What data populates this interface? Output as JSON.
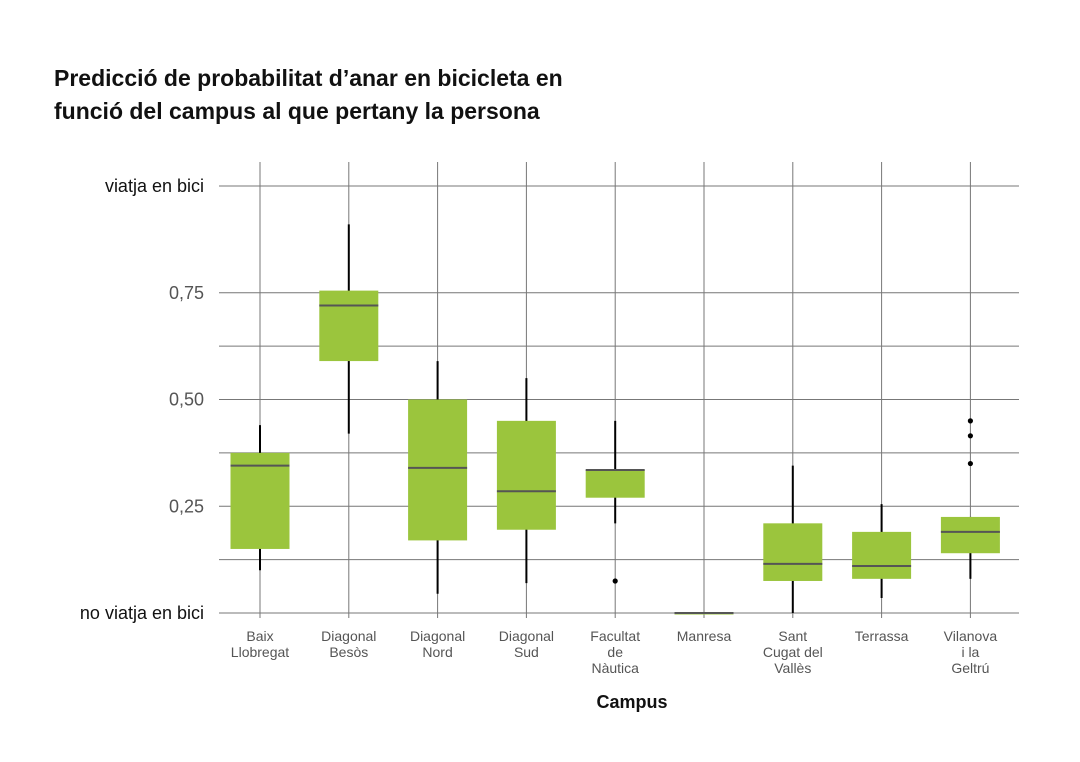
{
  "title_lines": [
    "Predicció de probabilitat d’anar en bicicleta en",
    "funció del campus al que pertany la persona"
  ],
  "chart_data": {
    "type": "boxplot",
    "xlabel": "Campus",
    "ylabel": "",
    "ylim": [
      0,
      1
    ],
    "y_ticks": [
      {
        "value": 0,
        "label": "no viatja en bici"
      },
      {
        "value": 0.25,
        "label": "0,25"
      },
      {
        "value": 0.5,
        "label": "0,50"
      },
      {
        "value": 0.75,
        "label": "0,75"
      },
      {
        "value": 1,
        "label": "viatja en bici"
      }
    ],
    "y_minor_grid": [
      0.125,
      0.375,
      0.625
    ],
    "grid": true,
    "box_color": "#9bc53d",
    "median_color": "#555555",
    "whisker_color": "#000000",
    "categories": [
      {
        "label": [
          "Baix",
          "Llobregat"
        ],
        "min": 0.1,
        "q1": 0.15,
        "median": 0.345,
        "q3": 0.375,
        "max": 0.44,
        "outliers": []
      },
      {
        "label": [
          "Diagonal",
          "Besòs"
        ],
        "min": 0.42,
        "q1": 0.59,
        "median": 0.72,
        "q3": 0.755,
        "max": 0.91,
        "outliers": []
      },
      {
        "label": [
          "Diagonal",
          "Nord"
        ],
        "min": 0.045,
        "q1": 0.17,
        "median": 0.34,
        "q3": 0.5,
        "max": 0.59,
        "outliers": []
      },
      {
        "label": [
          "Diagonal",
          "Sud"
        ],
        "min": 0.07,
        "q1": 0.195,
        "median": 0.285,
        "q3": 0.45,
        "max": 0.55,
        "outliers": []
      },
      {
        "label": [
          "Facultat",
          "de",
          "Nàutica"
        ],
        "min": 0.21,
        "q1": 0.27,
        "median": 0.335,
        "q3": 0.335,
        "max": 0.45,
        "outliers": [
          0.075
        ]
      },
      {
        "label": [
          "Manresa"
        ],
        "min": 0.0,
        "q1": 0.0,
        "median": 0.0,
        "q3": 0.0,
        "max": 0.0,
        "outliers": []
      },
      {
        "label": [
          "Sant",
          "Cugat del",
          "Vallès"
        ],
        "min": 0.0,
        "q1": 0.075,
        "median": 0.115,
        "q3": 0.21,
        "max": 0.345,
        "outliers": []
      },
      {
        "label": [
          "Terrassa"
        ],
        "min": 0.035,
        "q1": 0.08,
        "median": 0.11,
        "q3": 0.19,
        "max": 0.255,
        "outliers": []
      },
      {
        "label": [
          "Vilanova",
          "i la",
          "Geltrú"
        ],
        "min": 0.08,
        "q1": 0.14,
        "median": 0.19,
        "q3": 0.225,
        "max": 0.225,
        "outliers": [
          0.35,
          0.415,
          0.45
        ]
      }
    ]
  }
}
